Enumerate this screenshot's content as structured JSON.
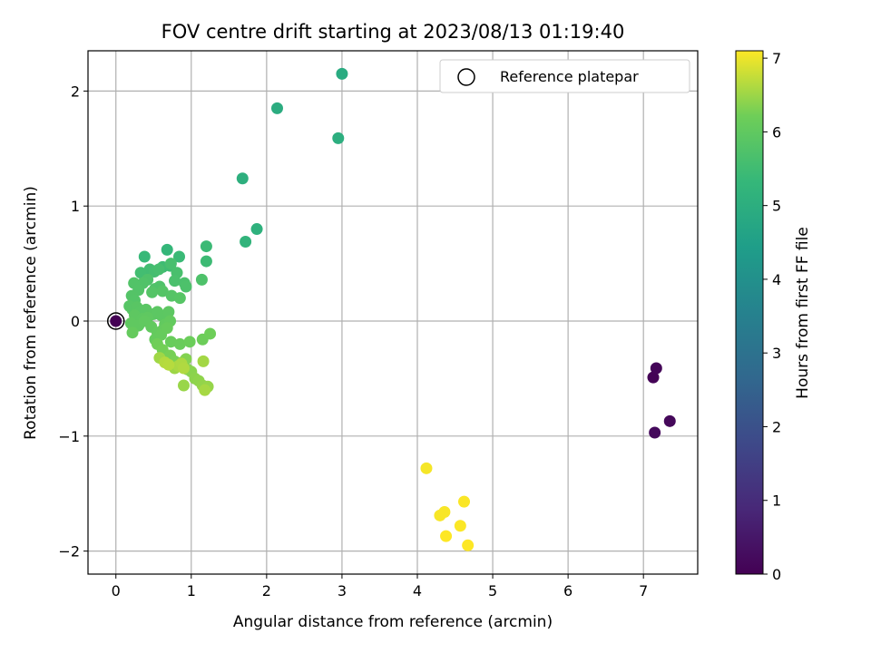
{
  "chart_data": {
    "type": "scatter",
    "title": "FOV centre drift starting at 2023/08/13 01:19:40",
    "xlabel": "Angular distance from reference (arcmin)",
    "ylabel": "Rotation from reference (arcmin)",
    "xlim": [
      -0.37,
      7.72
    ],
    "ylim": [
      -2.2,
      2.35
    ],
    "xticks": [
      0,
      1,
      2,
      3,
      4,
      5,
      6,
      7
    ],
    "yticks": [
      2,
      1,
      0,
      -1,
      -2
    ],
    "ytick_labels": [
      "2",
      "1",
      "0",
      "−1",
      "−2"
    ],
    "grid": true,
    "legend": {
      "placement": "top-right",
      "entries": [
        "Reference platepar"
      ]
    },
    "reference_point": {
      "x": 0,
      "y": 0,
      "marker": "open-circle"
    },
    "colorbar": {
      "label": "Hours from first FF file",
      "colormap": "viridis",
      "range": [
        0,
        7.1
      ],
      "ticks": [
        0,
        1,
        2,
        3,
        4,
        5,
        6,
        7
      ]
    },
    "series": [
      {
        "x": [
          0,
          7.13,
          7.17,
          7.35,
          7.15,
          4.12,
          4.3,
          4.36,
          4.62,
          4.57,
          4.38,
          4.67,
          3.0,
          2.14,
          2.95,
          1.68,
          1.87,
          1.72,
          0.68,
          0.38,
          0.84,
          1.2,
          1.2,
          0.62,
          0.72,
          0.45,
          0.33,
          0.51,
          0.57,
          0.73,
          0.81,
          0.78,
          0.91,
          0.93,
          1.14,
          0.42,
          0.58,
          0.52,
          0.36,
          0.24,
          0.3,
          0.21,
          0.25,
          0.48,
          0.62,
          0.74,
          0.85,
          0.18,
          0.22,
          0.28,
          0.32,
          0.4,
          0.45,
          0.5,
          0.55,
          0.6,
          0.7,
          0.25,
          0.35,
          0.42,
          0.2,
          0.3,
          0.38,
          0.47,
          0.65,
          0.72,
          0.55,
          0.62,
          0.22,
          0.52,
          0.6,
          0.68,
          0.73,
          0.85,
          0.98,
          1.15,
          1.25,
          0.55,
          0.62,
          0.72,
          0.78,
          0.82,
          0.88,
          0.93,
          0.95,
          1.0,
          1.05,
          1.1,
          1.15,
          1.22,
          0.9,
          0.78,
          0.58,
          1.16,
          1.18,
          0.83,
          0.87,
          0.9,
          0.65,
          0.7
        ],
        "y": [
          0,
          -0.49,
          -0.41,
          -0.87,
          -0.97,
          -1.28,
          -1.69,
          -1.66,
          -1.57,
          -1.78,
          -1.87,
          -1.95,
          2.15,
          1.85,
          1.59,
          1.24,
          0.8,
          0.69,
          0.62,
          0.56,
          0.56,
          0.65,
          0.52,
          0.47,
          0.48,
          0.45,
          0.42,
          0.43,
          0.45,
          0.5,
          0.42,
          0.35,
          0.33,
          0.3,
          0.36,
          0.36,
          0.3,
          0.28,
          0.33,
          0.33,
          0.27,
          0.22,
          0.18,
          0.25,
          0.26,
          0.22,
          0.2,
          0.13,
          0.1,
          0.12,
          0.08,
          0.1,
          0.05,
          0.06,
          0.08,
          0.05,
          0.08,
          0.05,
          0.02,
          0.03,
          -0.02,
          -0.04,
          0.0,
          -0.05,
          -0.03,
          0.0,
          -0.1,
          -0.08,
          -0.1,
          -0.16,
          -0.12,
          -0.06,
          -0.18,
          -0.2,
          -0.18,
          -0.16,
          -0.11,
          -0.2,
          -0.25,
          -0.3,
          -0.35,
          -0.38,
          -0.36,
          -0.33,
          -0.42,
          -0.44,
          -0.5,
          -0.52,
          -0.56,
          -0.57,
          -0.56,
          -0.41,
          -0.32,
          -0.35,
          -0.6,
          -0.39,
          -0.37,
          -0.41,
          -0.36,
          -0.38
        ],
        "hours": [
          0,
          0.05,
          0.1,
          0.15,
          0.2,
          7.05,
          7.06,
          7.07,
          7.08,
          7.09,
          7.1,
          7.1,
          4.9,
          4.95,
          5.0,
          5.05,
          5.1,
          5.2,
          5.3,
          5.35,
          5.4,
          5.42,
          5.45,
          5.48,
          5.5,
          5.52,
          5.55,
          5.57,
          5.6,
          5.62,
          5.64,
          5.66,
          5.68,
          5.7,
          5.72,
          5.73,
          5.74,
          5.75,
          5.76,
          5.78,
          5.79,
          5.8,
          5.81,
          5.82,
          5.83,
          5.84,
          5.85,
          5.86,
          5.87,
          5.88,
          5.89,
          5.9,
          5.91,
          5.92,
          5.93,
          5.94,
          5.95,
          5.96,
          5.97,
          5.98,
          5.99,
          6.0,
          6.01,
          6.02,
          6.03,
          6.04,
          6.05,
          6.06,
          6.07,
          6.08,
          6.09,
          6.1,
          6.12,
          6.14,
          6.16,
          6.18,
          6.2,
          6.22,
          6.24,
          6.26,
          6.28,
          6.3,
          6.32,
          6.34,
          6.36,
          6.38,
          6.4,
          6.42,
          6.44,
          6.46,
          6.48,
          6.5,
          6.52,
          6.54,
          6.56,
          6.58,
          6.6,
          6.62,
          6.64,
          6.66
        ]
      }
    ]
  }
}
